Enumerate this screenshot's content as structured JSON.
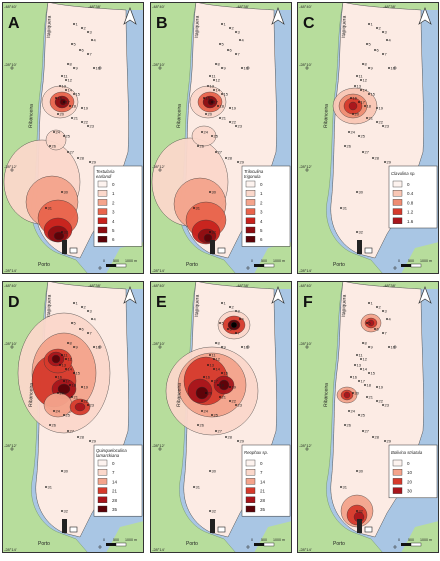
{
  "colors": {
    "sea": "#a9c6e4",
    "land": "#b7dd9c",
    "coast_fill": "#fcebe4",
    "frame": "#333333"
  },
  "coordinates": {
    "top_left": "-48°40'",
    "top_right": "-48°38'",
    "lat_top": "-28°10'",
    "lat_mid": "-28°12'",
    "lat_bottom": "-28°14'",
    "top_left_short": "-48°40'"
  },
  "place_names": {
    "north": "Itapiquera",
    "west": "Ribanceira",
    "south": "Porto"
  },
  "scale_bar": {
    "zero": "0",
    "mid": "500",
    "end": "1000 m"
  },
  "north_arrow": "north-arrow-icon",
  "station_labels": [
    "1",
    "2",
    "3",
    "4",
    "5",
    "6",
    "7",
    "8",
    "9",
    "10",
    "11",
    "12",
    "13",
    "14",
    "15",
    "16",
    "17",
    "18",
    "19",
    "20",
    "21",
    "22",
    "23",
    "24",
    "25",
    "26",
    "27",
    "28",
    "29",
    "30",
    "31",
    "32"
  ],
  "panels": [
    {
      "letter": "A",
      "species": "Textularia earlandi",
      "legend": [
        "0",
        "1",
        "2",
        "3",
        "4",
        "5",
        "6"
      ]
    },
    {
      "letter": "B",
      "species": "Triloculina trigonula",
      "legend": [
        "0",
        "1",
        "2",
        "3",
        "4",
        "5",
        "6"
      ]
    },
    {
      "letter": "C",
      "species": "Clavulina sp.",
      "legend": [
        "0",
        "0.4",
        "0.8",
        "1.2",
        "1.6"
      ]
    },
    {
      "letter": "D",
      "species": "Quinqueloculina lamarckiana",
      "legend": [
        "0",
        "7",
        "14",
        "21",
        "28",
        "35"
      ]
    },
    {
      "letter": "E",
      "species": "Reophax sp.",
      "legend": [
        "0",
        "7",
        "14",
        "21",
        "28",
        "35"
      ]
    },
    {
      "letter": "F",
      "species": "Bolivina striatula",
      "legend": [
        "0",
        "10",
        "20",
        "30"
      ]
    }
  ]
}
